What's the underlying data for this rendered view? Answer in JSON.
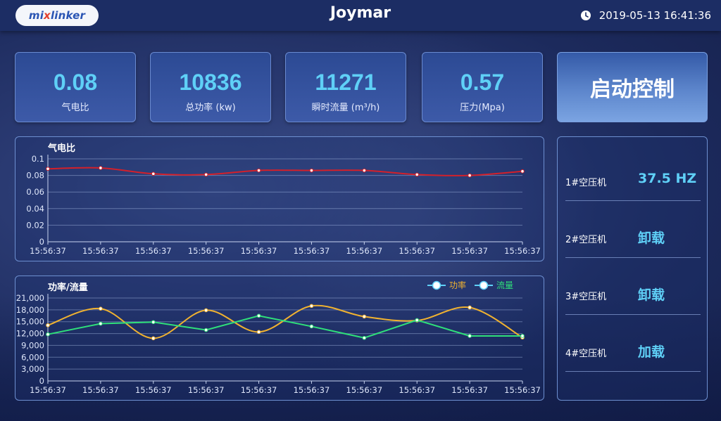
{
  "header": {
    "logo_text": "mixlinker",
    "title": "Joymar",
    "datetime": "2019-05-13 16:41:36"
  },
  "cards": [
    {
      "value": "0.08",
      "label": "气电比"
    },
    {
      "value": "10836",
      "label": "总功率 (kw)"
    },
    {
      "value": "11271",
      "label": "瞬时流量 (m³/h)"
    },
    {
      "value": "0.57",
      "label": "压力(Mpa)"
    }
  ],
  "start_button": {
    "label": "启动控制"
  },
  "compressors": [
    {
      "name": "1#空压机",
      "status": "37.5 HZ"
    },
    {
      "name": "2#空压机",
      "status": "卸载"
    },
    {
      "name": "3#空压机",
      "status": "卸载"
    },
    {
      "name": "4#空压机",
      "status": "加载"
    }
  ],
  "colors": {
    "accent": "#5fd0f7",
    "ratio_line": "#d4202a",
    "power_line": "#f0b230",
    "flow_line": "#2fe07a"
  },
  "chart_data": [
    {
      "type": "line",
      "title": "气电比",
      "x": [
        "15:56:37",
        "15:56:37",
        "15:56:37",
        "15:56:37",
        "15:56:37",
        "15:56:37",
        "15:56:37",
        "15:56:37",
        "15:56:37",
        "15:56:37"
      ],
      "series": [
        {
          "values": [
            0.088,
            0.089,
            0.082,
            0.081,
            0.086,
            0.086,
            0.086,
            0.081,
            0.08,
            0.085
          ]
        }
      ],
      "ylim": [
        0,
        0.1
      ],
      "yticks": [
        "0",
        "0.02",
        "0.04",
        "0.06",
        "0.08",
        "0.1"
      ],
      "grid": true
    },
    {
      "type": "line",
      "title": "功率/流量",
      "x": [
        "15:56:37",
        "15:56:37",
        "15:56:37",
        "15:56:37",
        "15:56:37",
        "15:56:37",
        "15:56:37",
        "15:56:37",
        "15:56:37",
        "15:56:37"
      ],
      "series": [
        {
          "name": "功率",
          "values": [
            14100,
            18300,
            10800,
            17900,
            12400,
            19000,
            16300,
            15300,
            18600,
            11000
          ]
        },
        {
          "name": "流量",
          "values": [
            11800,
            14500,
            14900,
            12900,
            16500,
            13800,
            10900,
            15400,
            11400,
            11400
          ]
        }
      ],
      "ylim": [
        0,
        21000
      ],
      "yticks": [
        "0",
        "3,000",
        "6,000",
        "9,000",
        "12,000",
        "15,000",
        "18,000",
        "21,000"
      ],
      "grid": true,
      "legend": "top-right"
    }
  ]
}
